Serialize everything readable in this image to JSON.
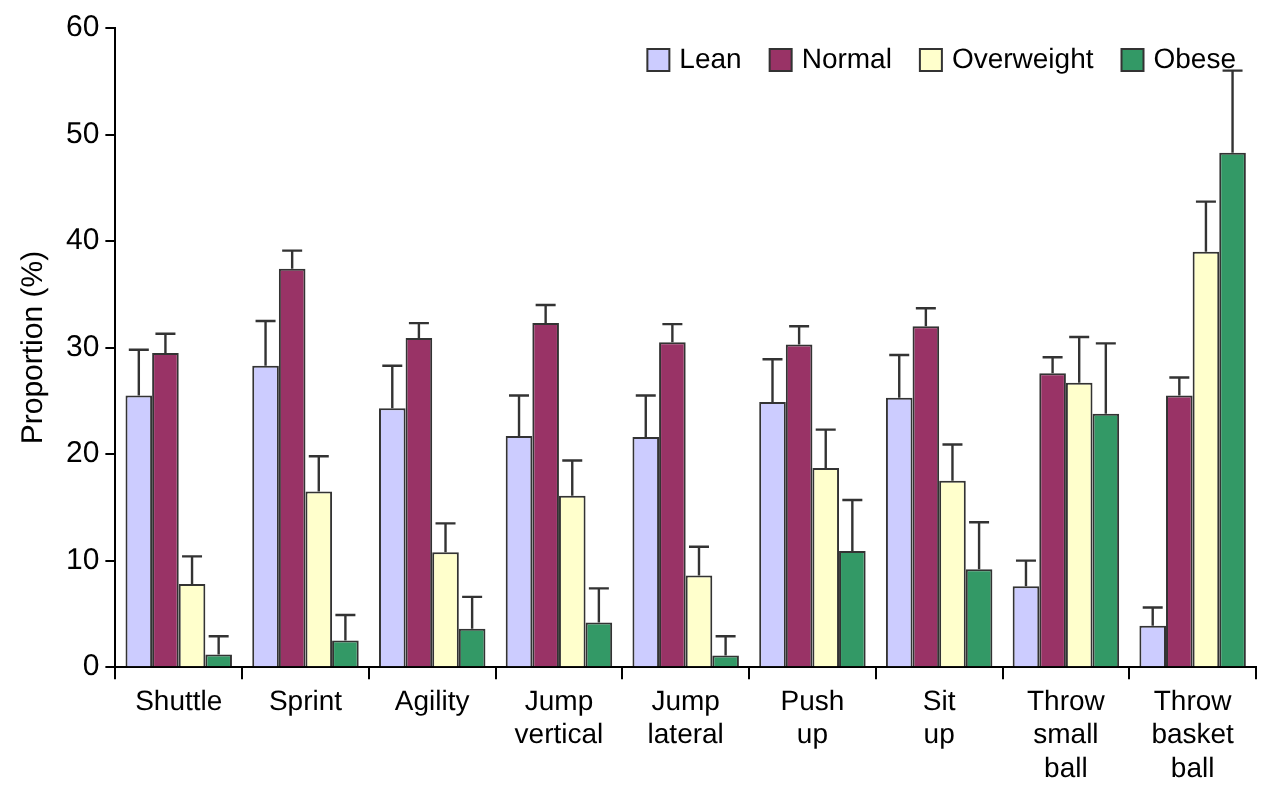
{
  "chart_data": {
    "type": "bar",
    "ylabel": "Proportion (%)",
    "categories": [
      "Shuttle",
      "Sprint",
      "Agility",
      "Jump vertical",
      "Jump lateral",
      "Push up",
      "Sit up",
      "Throw small ball",
      "Throw basket ball"
    ],
    "series": [
      {
        "name": "Lean",
        "color": "#ccccff",
        "values": [
          25.5,
          28.3,
          24.3,
          21.7,
          21.6,
          24.9,
          25.3,
          7.6,
          3.9
        ],
        "errors": [
          [
            25.5,
            29.8
          ],
          [
            28.3,
            32.5
          ],
          [
            24.3,
            28.3
          ],
          [
            21.7,
            25.5
          ],
          [
            21.6,
            25.5
          ],
          [
            24.9,
            28.9
          ],
          [
            25.3,
            29.3
          ],
          [
            7.6,
            10.0
          ],
          [
            3.9,
            5.6
          ]
        ]
      },
      {
        "name": "Normal",
        "color": "#993366",
        "values": [
          29.5,
          37.4,
          30.9,
          32.3,
          30.5,
          30.3,
          32.0,
          27.6,
          25.5
        ],
        "errors": [
          [
            29.5,
            31.3
          ],
          [
            37.4,
            39.1
          ],
          [
            30.9,
            32.3
          ],
          [
            32.3,
            34.0
          ],
          [
            30.5,
            32.2
          ],
          [
            30.3,
            32.0
          ],
          [
            32.0,
            33.7
          ],
          [
            27.6,
            29.1
          ],
          [
            25.5,
            27.2
          ]
        ]
      },
      {
        "name": "Overweight",
        "color": "#ffffcc",
        "values": [
          7.8,
          16.5,
          10.8,
          16.1,
          8.6,
          18.7,
          17.5,
          26.7,
          39.0
        ],
        "errors": [
          [
            7.8,
            10.4
          ],
          [
            16.5,
            19.8
          ],
          [
            10.8,
            13.5
          ],
          [
            16.1,
            19.4
          ],
          [
            8.6,
            11.3
          ],
          [
            18.7,
            22.3
          ],
          [
            17.5,
            20.9
          ],
          [
            26.7,
            31.0
          ],
          [
            39.0,
            43.7
          ]
        ]
      },
      {
        "name": "Obese",
        "color": "#339966",
        "values": [
          1.2,
          2.5,
          3.6,
          4.2,
          1.1,
          10.9,
          9.2,
          23.8,
          48.3
        ],
        "errors": [
          [
            1.2,
            2.9
          ],
          [
            2.5,
            4.9
          ],
          [
            3.6,
            6.6
          ],
          [
            4.2,
            7.4
          ],
          [
            1.1,
            2.9
          ],
          [
            10.9,
            15.7
          ],
          [
            9.2,
            13.6
          ],
          [
            23.8,
            30.4
          ],
          [
            48.3,
            56.0
          ]
        ]
      }
    ],
    "ylim": [
      0,
      60
    ],
    "yticks": [
      0,
      10,
      20,
      30,
      40,
      50,
      60
    ],
    "grid": false,
    "legend": "top right"
  }
}
